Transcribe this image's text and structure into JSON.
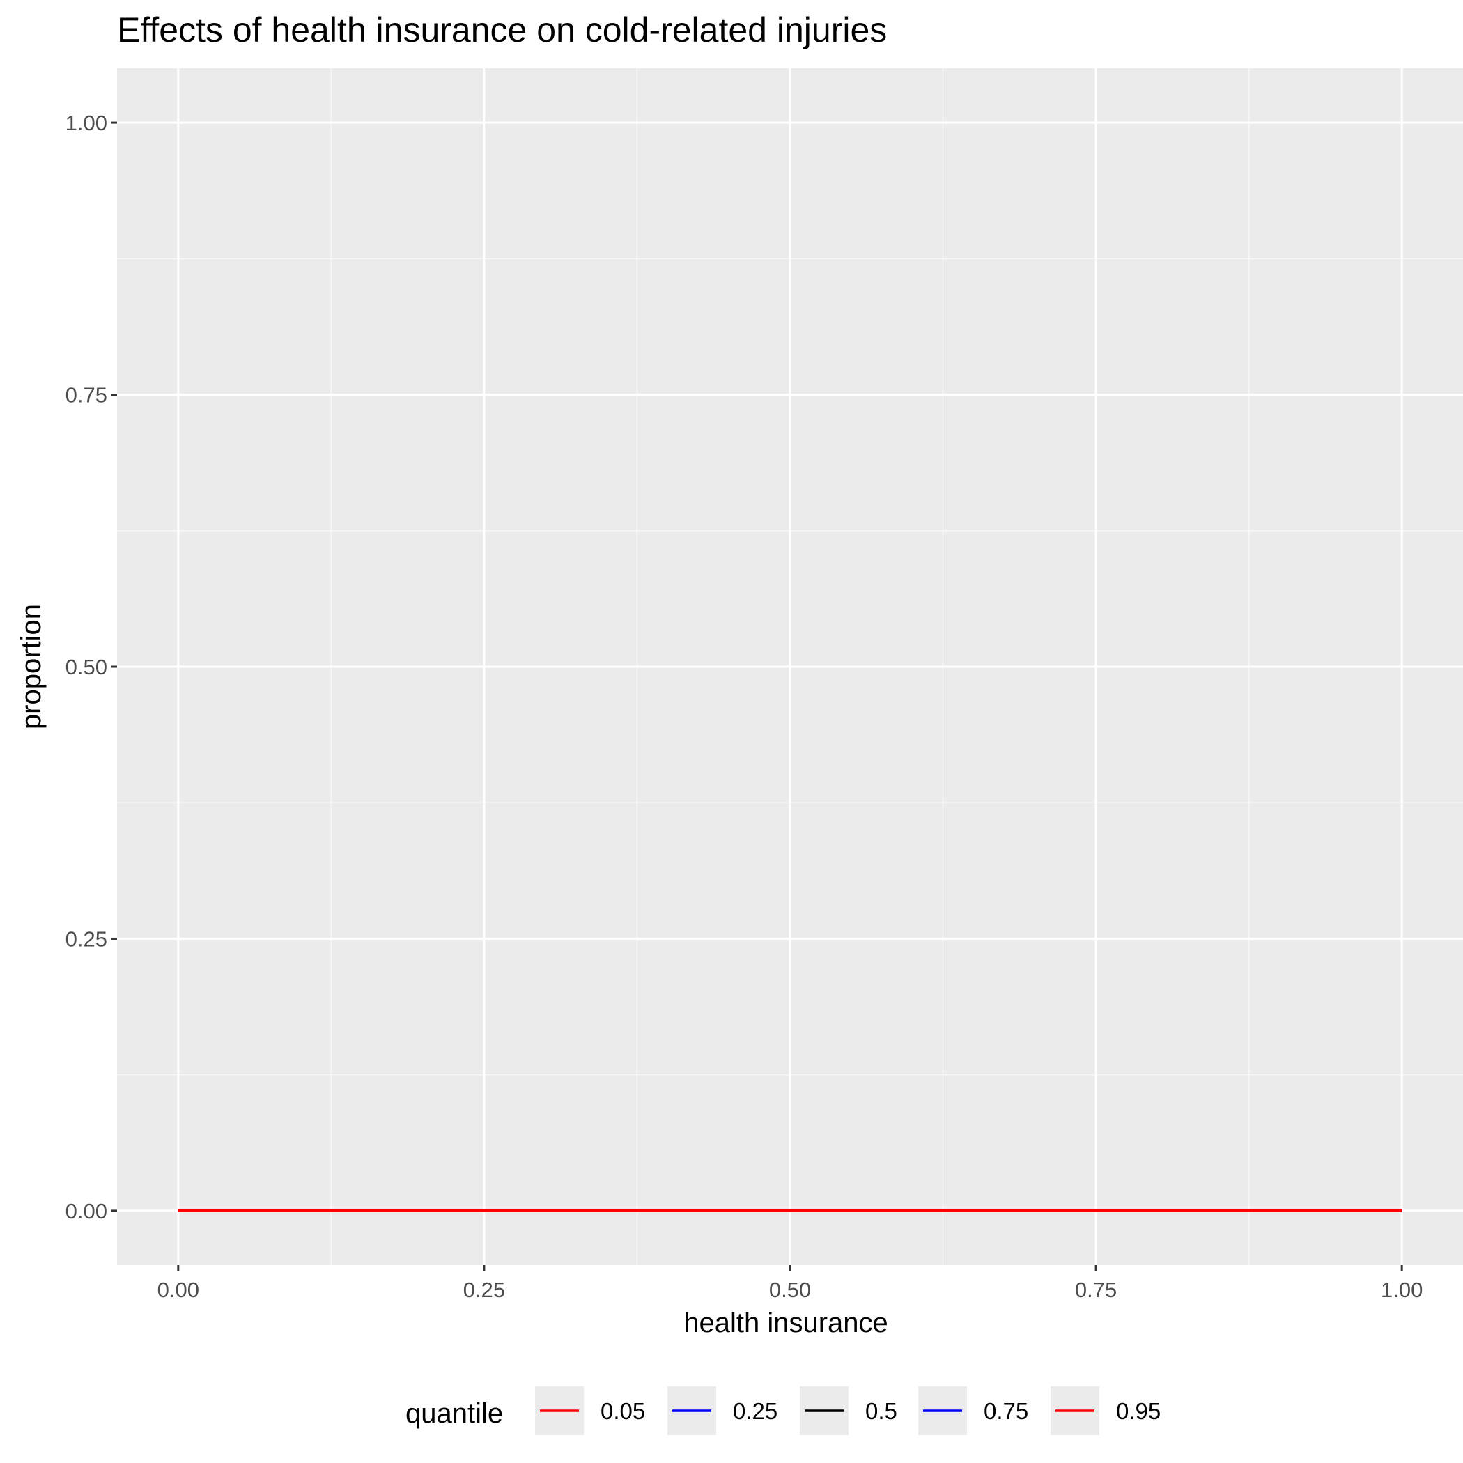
{
  "chart_data": {
    "type": "line",
    "title": "Effects of health insurance on cold-related injuries",
    "xlabel": "health insurance",
    "ylabel": "proportion",
    "xlim": [
      -0.05,
      1.05
    ],
    "ylim": [
      -0.05,
      1.05
    ],
    "x_ticks": [
      0.0,
      0.25,
      0.5,
      0.75,
      1.0
    ],
    "x_tick_labels": [
      "0.00",
      "0.25",
      "0.50",
      "0.75",
      "1.00"
    ],
    "y_ticks": [
      0.0,
      0.25,
      0.5,
      0.75,
      1.0
    ],
    "y_tick_labels": [
      "0.00",
      "0.25",
      "0.50",
      "0.75",
      "1.00"
    ],
    "grid": true,
    "legend_position": "bottom",
    "legend_title": "quantile",
    "x": [
      0.0,
      1.0
    ],
    "series": [
      {
        "name": "0.05",
        "color": "#ff0000",
        "values": [
          0,
          0
        ]
      },
      {
        "name": "0.25",
        "color": "#0000ff",
        "values": [
          0,
          0
        ]
      },
      {
        "name": "0.5",
        "color": "#000000",
        "values": [
          0,
          0
        ]
      },
      {
        "name": "0.75",
        "color": "#0000ff",
        "values": [
          0,
          0
        ]
      },
      {
        "name": "0.95",
        "color": "#ff0000",
        "values": [
          0,
          0
        ]
      }
    ],
    "colors": {
      "panel_background": "#ebebeb",
      "grid_major": "#ffffff",
      "grid_minor": "#f7f7f7",
      "tick_mark": "#333333",
      "legend_key_background": "#ebebeb"
    }
  }
}
